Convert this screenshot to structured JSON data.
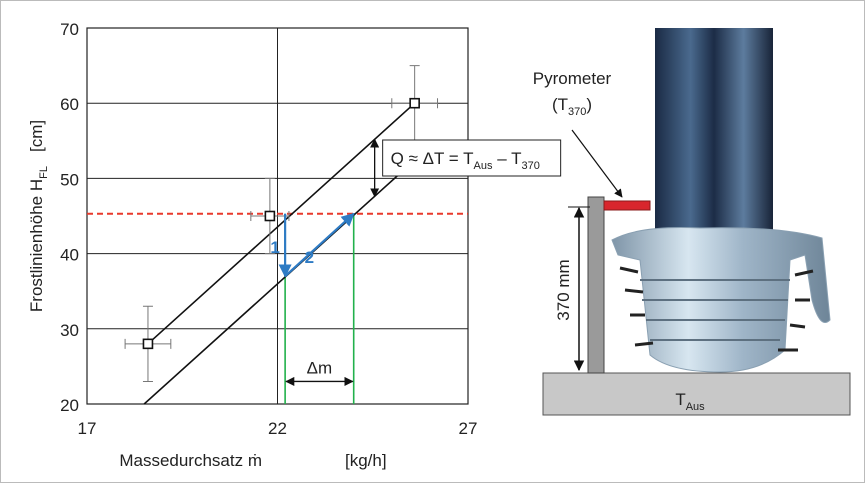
{
  "chart_data": {
    "type": "scatter",
    "y_label": "Frostlinienhöhe H",
    "y_label_sub": "FL",
    "y_label_unit": "[cm]",
    "x_label": "Massedurchsatz ṁ",
    "x_label_unit": "[kg/h]",
    "xlim": [
      17,
      27
    ],
    "xticks": [
      17,
      22,
      27
    ],
    "ylim": [
      20,
      70
    ],
    "yticks": [
      20,
      30,
      40,
      50,
      60,
      70
    ],
    "grid": true,
    "points": {
      "x": [
        18.6,
        21.8,
        25.6
      ],
      "y": [
        28,
        45,
        60
      ],
      "xerr": [
        0.6,
        0.5,
        0.6
      ],
      "yerr": [
        5,
        5,
        5
      ]
    },
    "lines": [
      {
        "x": [
          18.6,
          25.6
        ],
        "y": [
          28,
          60
        ]
      },
      {
        "x": [
          18.5,
          25.4
        ],
        "y": [
          20,
          51.5
        ]
      }
    ],
    "ref_line": {
      "y": 45.3,
      "color": "#e8392b"
    },
    "green_lines": {
      "x": [
        22.2,
        24.0
      ],
      "color": "#22b14c"
    },
    "arrows": [
      {
        "label": "1",
        "x": [
          22.2,
          22.2
        ],
        "y": [
          45.3,
          37
        ],
        "color": "#2e7bc4"
      },
      {
        "label": "2",
        "x": [
          22.2,
          24.0
        ],
        "y": [
          37,
          45.3
        ],
        "color": "#2e7bc4"
      }
    ],
    "delta_m": {
      "label": "Δm",
      "x": [
        22.2,
        24.0
      ],
      "y": 23
    },
    "q_arrow": {
      "x": 24.55,
      "y": [
        55.2,
        47.6
      ],
      "text": "Q ≈ ΔT = T",
      "sub1": "Aus",
      "text2": " – T",
      "sub2": "370"
    }
  },
  "diagram": {
    "pyrometer": "Pyrometer",
    "t_open": "(T",
    "t_sub": "370",
    "t_close": ")",
    "height": "370 mm",
    "t_aus": "T",
    "t_aus_sub": "Aus"
  }
}
